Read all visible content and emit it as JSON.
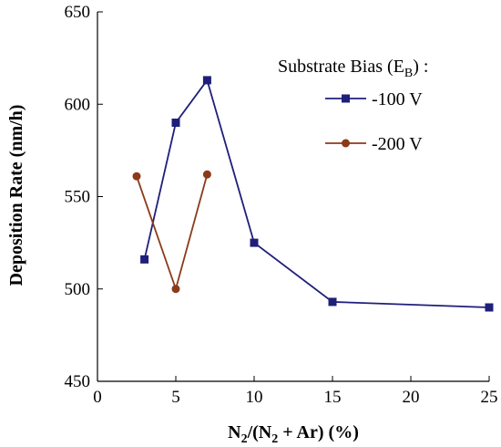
{
  "chart_data": {
    "type": "line",
    "title": "",
    "xlabel": "N2/(N2 + Ar) (%)",
    "ylabel": "Deposition Rate (nm/h)",
    "xlim": [
      0,
      25
    ],
    "ylim": [
      450,
      650
    ],
    "xticks": [
      "0",
      "5",
      "10",
      "15",
      "20",
      "25"
    ],
    "yticks": [
      "450",
      "500",
      "550",
      "600",
      "650"
    ],
    "grid": false,
    "legend": {
      "title_main": "Substrate Bias (E",
      "title_sub": "B",
      "title_end": ") :",
      "placement": "top-right"
    },
    "series": [
      {
        "name": "-100 V",
        "color": "#1f1f7a",
        "marker": "square",
        "x": [
          3,
          5,
          7,
          10,
          15,
          25
        ],
        "y": [
          516,
          590,
          613,
          525,
          493,
          490
        ]
      },
      {
        "name": "-200 V",
        "color": "#8b3a1a",
        "marker": "circle",
        "x": [
          2.5,
          5,
          7
        ],
        "y": [
          561,
          500,
          562
        ]
      }
    ]
  }
}
